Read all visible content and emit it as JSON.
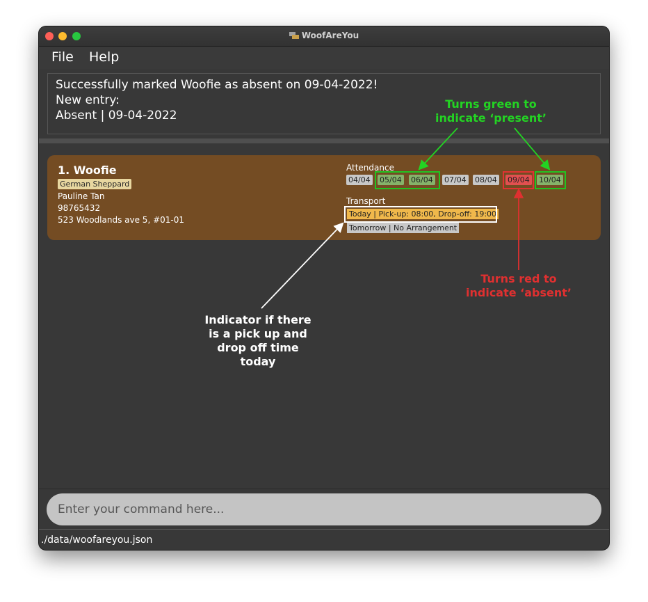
{
  "window": {
    "title": "WoofAreYou"
  },
  "menu": {
    "file": "File",
    "help": "Help"
  },
  "result": {
    "line1": "Successfully marked Woofie as absent on 09-04-2022!",
    "line2": "New entry:",
    "line3": "Absent | 09-04-2022"
  },
  "pet": {
    "index_name": "1.  Woofie",
    "breed": "German Sheppard",
    "owner": "Pauline Tan",
    "phone": "98765432",
    "address": "523 Woodlands ave 5, #01-01",
    "attendance_label": "Attendance",
    "attendance": [
      {
        "date": "04/04",
        "status": "none"
      },
      {
        "date": "05/04",
        "status": "present"
      },
      {
        "date": "06/04",
        "status": "present"
      },
      {
        "date": "07/04",
        "status": "none"
      },
      {
        "date": "08/04",
        "status": "none"
      },
      {
        "date": "09/04",
        "status": "absent"
      },
      {
        "date": "10/04",
        "status": "present"
      }
    ],
    "transport_label": "Transport",
    "transport_today": "Today | Pick-up: 08:00, Drop-off: 19:00",
    "transport_tomorrow": "Tomorrow | No Arrangement"
  },
  "command": {
    "placeholder": "Enter your command here..."
  },
  "status": {
    "path": "./data/woofareyou.json"
  },
  "annotations": {
    "green_line1": "Turns green to",
    "green_line2": "indicate ‘present’",
    "red_line1": "Turns red to",
    "red_line2": "indicate ‘absent’",
    "white_line1": "Indicator if there",
    "white_line2": "is a pick up and",
    "white_line3": "drop off time",
    "white_line4": "today"
  },
  "colors": {
    "card": "#744c23",
    "present": "#85b36a",
    "absent": "#e25050",
    "pending": "#c8c8c8",
    "transport_today": "#f0b84b",
    "annotation_green": "#23d423",
    "annotation_red": "#e03030"
  }
}
